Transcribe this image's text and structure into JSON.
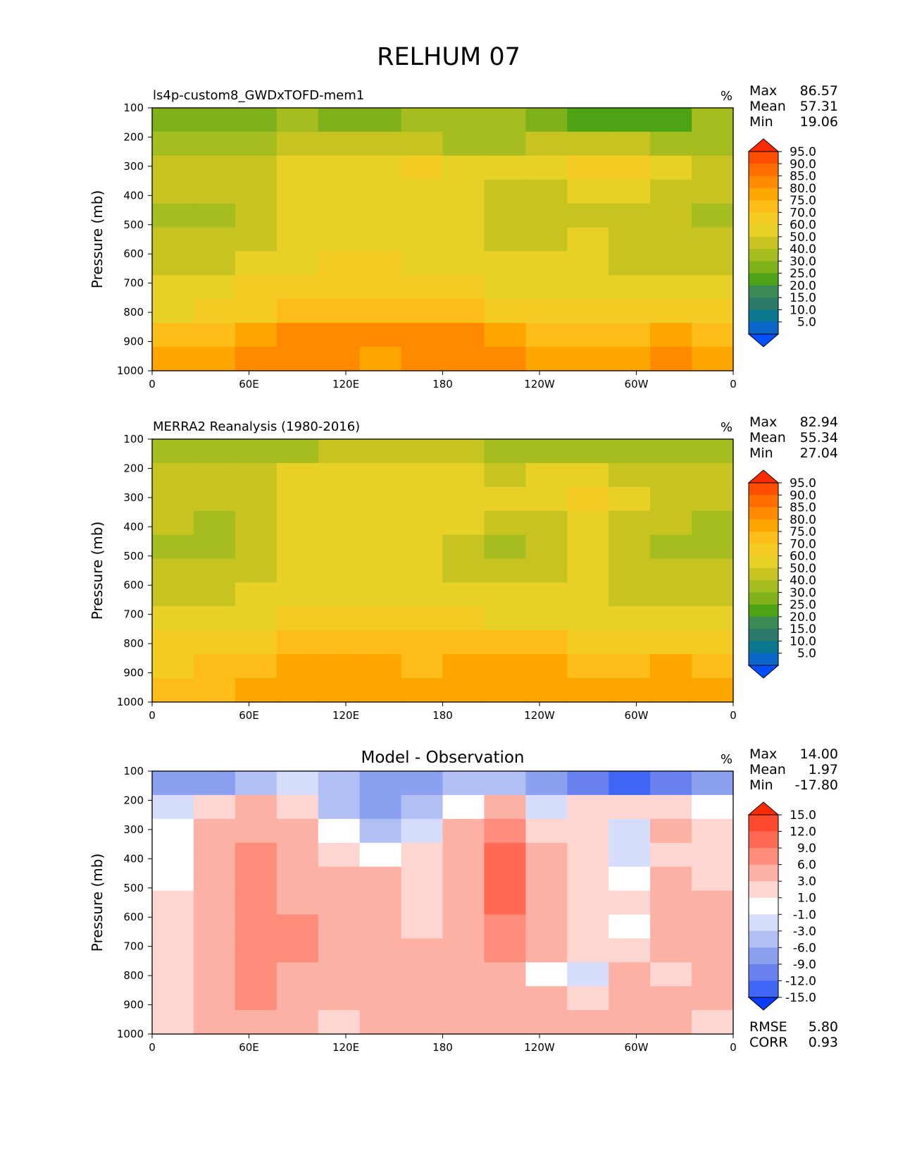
{
  "figure_title": "RELHUM 07",
  "chart_data": [
    {
      "type": "heatmap",
      "title": "ls4p-custom8_GWDxTOFD-mem1",
      "units": "%",
      "xlabel": "",
      "ylabel": "Pressure (mb)",
      "xticks": [
        "0",
        "60E",
        "120E",
        "180",
        "120W",
        "60W",
        "0"
      ],
      "yticks": [
        "100",
        "200",
        "300",
        "400",
        "500",
        "600",
        "700",
        "800",
        "900",
        "1000"
      ],
      "xlim": [
        0,
        360
      ],
      "ylim": [
        1000,
        100
      ],
      "stats": [
        {
          "label": "Max",
          "value": "86.57"
        },
        {
          "label": "Mean",
          "value": "57.31"
        },
        {
          "label": "Min",
          "value": "19.06"
        }
      ],
      "colorbar_levels": [
        "95.0",
        "90.0",
        "85.0",
        "80.0",
        "75.0",
        "70.0",
        "60.0",
        "50.0",
        "40.0",
        "30.0",
        "25.0",
        "20.0",
        "15.0",
        "10.0",
        "5.0"
      ],
      "colorbar_colors": [
        "#ff2a00",
        "#ff4e00",
        "#ff6c00",
        "#ff8a00",
        "#ffa500",
        "#fdbc18",
        "#f4cb22",
        "#e8d126",
        "#c7c421",
        "#a5bd1f",
        "#7fb21a",
        "#4ca314",
        "#3c8a55",
        "#2c7a6a",
        "#0a7690",
        "#0a66c8",
        "#0050ff"
      ],
      "rows_top_to_bottom": [
        [
          28,
          26,
          28,
          30,
          28,
          28,
          30,
          32,
          30,
          28,
          24,
          20,
          24,
          30
        ],
        [
          38,
          36,
          38,
          42,
          44,
          44,
          42,
          38,
          38,
          42,
          44,
          40,
          38,
          36
        ],
        [
          44,
          46,
          48,
          56,
          58,
          58,
          60,
          56,
          52,
          56,
          64,
          60,
          54,
          48
        ],
        [
          42,
          40,
          48,
          56,
          58,
          58,
          58,
          56,
          46,
          48,
          56,
          50,
          44,
          40
        ],
        [
          36,
          36,
          44,
          56,
          56,
          58,
          58,
          50,
          42,
          46,
          48,
          42,
          40,
          36
        ],
        [
          40,
          42,
          48,
          54,
          58,
          58,
          58,
          54,
          44,
          48,
          50,
          46,
          42,
          40
        ],
        [
          44,
          46,
          52,
          58,
          64,
          60,
          58,
          56,
          50,
          52,
          52,
          48,
          46,
          44
        ],
        [
          50,
          52,
          60,
          64,
          66,
          64,
          62,
          60,
          58,
          58,
          56,
          56,
          54,
          52
        ],
        [
          58,
          64,
          68,
          72,
          74,
          72,
          70,
          70,
          68,
          66,
          64,
          66,
          64,
          62
        ],
        [
          70,
          74,
          76,
          82,
          84,
          80,
          82,
          84,
          78,
          72,
          70,
          74,
          76,
          72
        ],
        [
          76,
          78,
          80,
          82,
          80,
          78,
          80,
          82,
          80,
          78,
          76,
          78,
          80,
          78
        ]
      ]
    },
    {
      "type": "heatmap",
      "title": "MERRA2 Reanalysis (1980-2016)",
      "units": "%",
      "xlabel": "",
      "ylabel": "Pressure (mb)",
      "xticks": [
        "0",
        "60E",
        "120E",
        "180",
        "120W",
        "60W",
        "0"
      ],
      "yticks": [
        "100",
        "200",
        "300",
        "400",
        "500",
        "600",
        "700",
        "800",
        "900",
        "1000"
      ],
      "xlim": [
        0,
        360
      ],
      "ylim": [
        1000,
        100
      ],
      "stats": [
        {
          "label": "Max",
          "value": "82.94"
        },
        {
          "label": "Mean",
          "value": "55.34"
        },
        {
          "label": "Min",
          "value": "27.04"
        }
      ],
      "colorbar_levels": [
        "95.0",
        "90.0",
        "85.0",
        "80.0",
        "75.0",
        "70.0",
        "60.0",
        "50.0",
        "40.0",
        "30.0",
        "25.0",
        "20.0",
        "15.0",
        "10.0",
        "5.0"
      ],
      "colorbar_colors": [
        "#ff2a00",
        "#ff4e00",
        "#ff6c00",
        "#ff8a00",
        "#ffa500",
        "#fdbc18",
        "#f4cb22",
        "#e8d126",
        "#c7c421",
        "#a5bd1f",
        "#7fb21a",
        "#4ca314",
        "#3c8a55",
        "#2c7a6a",
        "#0a7690",
        "#0a66c8",
        "#0050ff"
      ],
      "rows_top_to_bottom": [
        [
          36,
          34,
          36,
          38,
          40,
          40,
          40,
          40,
          38,
          38,
          38,
          38,
          36,
          36
        ],
        [
          42,
          42,
          44,
          54,
          56,
          56,
          56,
          52,
          46,
          50,
          52,
          48,
          44,
          42
        ],
        [
          44,
          46,
          48,
          56,
          58,
          58,
          58,
          56,
          50,
          54,
          62,
          56,
          48,
          44
        ],
        [
          40,
          38,
          44,
          56,
          58,
          58,
          56,
          50,
          42,
          48,
          52,
          46,
          40,
          38
        ],
        [
          38,
          36,
          42,
          56,
          58,
          58,
          54,
          46,
          36,
          44,
          50,
          44,
          38,
          36
        ],
        [
          42,
          40,
          44,
          56,
          58,
          58,
          54,
          48,
          40,
          46,
          52,
          46,
          42,
          42
        ],
        [
          44,
          46,
          50,
          56,
          58,
          58,
          56,
          54,
          50,
          52,
          54,
          48,
          46,
          44
        ],
        [
          50,
          52,
          56,
          60,
          62,
          62,
          60,
          60,
          58,
          58,
          58,
          56,
          54,
          52
        ],
        [
          60,
          62,
          66,
          70,
          72,
          70,
          70,
          72,
          72,
          70,
          68,
          68,
          66,
          64
        ],
        [
          68,
          70,
          72,
          76,
          78,
          76,
          74,
          76,
          78,
          76,
          74,
          74,
          76,
          74
        ],
        [
          72,
          74,
          76,
          78,
          78,
          76,
          76,
          78,
          78,
          78,
          76,
          76,
          78,
          76
        ]
      ]
    },
    {
      "type": "heatmap",
      "title": "Model - Observation",
      "units": "%",
      "xlabel": "",
      "ylabel": "Pressure (mb)",
      "xticks": [
        "0",
        "60E",
        "120E",
        "180",
        "120W",
        "60W",
        "0"
      ],
      "yticks": [
        "100",
        "200",
        "300",
        "400",
        "500",
        "600",
        "700",
        "800",
        "900",
        "1000"
      ],
      "xlim": [
        0,
        360
      ],
      "ylim": [
        1000,
        100
      ],
      "stats": [
        {
          "label": "Max",
          "value": "14.00"
        },
        {
          "label": "Mean",
          "value": "1.97"
        },
        {
          "label": "Min",
          "value": "-17.80"
        }
      ],
      "extra_stats": [
        {
          "label": "RMSE",
          "value": "5.80"
        },
        {
          "label": "CORR",
          "value": "0.93"
        }
      ],
      "colorbar_levels": [
        "15.0",
        "12.0",
        "9.0",
        "6.0",
        "3.0",
        "1.0",
        "-1.0",
        "-3.0",
        "-6.0",
        "-9.0",
        "-12.0",
        "-15.0"
      ],
      "colorbar_colors": [
        "#ff2a00",
        "#ff4a30",
        "#ff6a55",
        "#fd8c7a",
        "#fdb0a4",
        "#fdd6d2",
        "#ffffff",
        "#d6ddfa",
        "#b1bff5",
        "#8ca0f0",
        "#6a82f0",
        "#4066f5",
        "#0b3af8"
      ],
      "rows_top_to_bottom": [
        [
          -8,
          -9,
          -5,
          -3,
          -6,
          -9,
          -9,
          -5,
          -6,
          -9,
          -11,
          -14,
          -12,
          -8
        ],
        [
          -2,
          2,
          3,
          1,
          -4,
          -7,
          -6,
          0,
          3,
          -2,
          2,
          2,
          1,
          -1
        ],
        [
          0,
          3,
          5,
          4,
          -1,
          -5,
          -3,
          3,
          8,
          1,
          1,
          -2,
          3,
          2
        ],
        [
          0,
          4,
          8,
          4,
          1,
          -1,
          1,
          4,
          11,
          4,
          1,
          -3,
          1,
          1
        ],
        [
          0,
          3,
          7,
          5,
          3,
          3,
          2,
          4,
          10,
          5,
          2,
          -1,
          4,
          2
        ],
        [
          1,
          3,
          7,
          5,
          3,
          4,
          2,
          4,
          9,
          5,
          1,
          1,
          5,
          3
        ],
        [
          1,
          3,
          7,
          6,
          4,
          3,
          2,
          5,
          8,
          4,
          1,
          0,
          5,
          3
        ],
        [
          2,
          4,
          7,
          6,
          4,
          3,
          4,
          5,
          6,
          3,
          1,
          2,
          4,
          3
        ],
        [
          2,
          5,
          7,
          5,
          4,
          5,
          5,
          4,
          3,
          0,
          -3,
          3,
          1,
          3
        ],
        [
          2,
          4,
          6,
          5,
          4,
          4,
          5,
          5,
          4,
          3,
          2,
          3,
          3,
          3
        ],
        [
          1,
          3,
          4,
          3,
          2,
          3,
          3,
          4,
          5,
          4,
          3,
          3,
          3,
          2
        ]
      ]
    }
  ]
}
